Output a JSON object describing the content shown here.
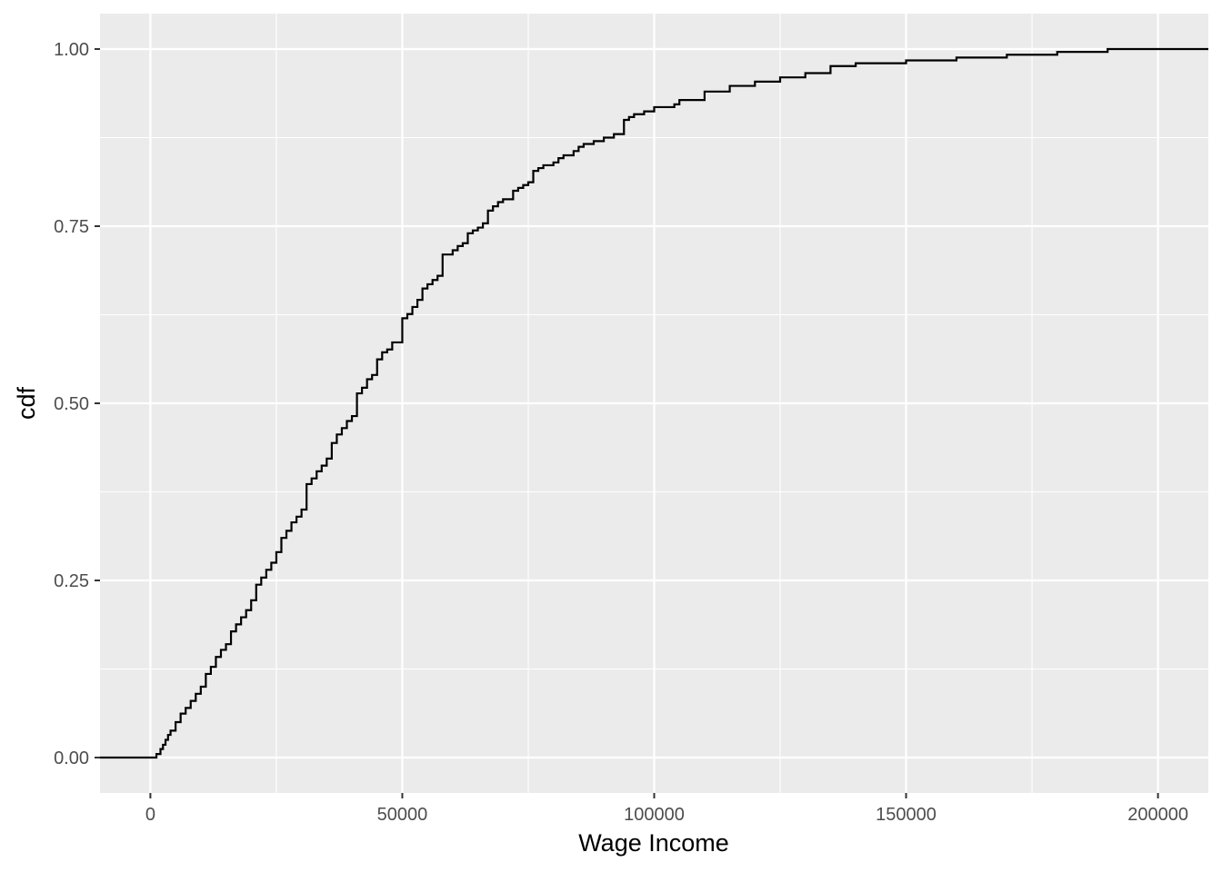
{
  "chart_data": {
    "type": "line",
    "xlabel": "Wage Income",
    "ylabel": "cdf",
    "xlim": [
      -10000,
      210000
    ],
    "ylim": [
      -0.05,
      1.05
    ],
    "x_ticks": [
      0,
      50000,
      100000,
      150000,
      200000
    ],
    "x_tick_labels": [
      "0",
      "50000",
      "100000",
      "150000",
      "200000"
    ],
    "y_ticks": [
      0,
      0.25,
      0.5,
      0.75,
      1
    ],
    "y_tick_labels": [
      "0.00",
      "0.25",
      "0.50",
      "0.75",
      "1.00"
    ],
    "x_minor_ticks": [
      25000,
      75000,
      125000,
      175000
    ],
    "y_minor_ticks": [
      0.125,
      0.375,
      0.625,
      0.875
    ],
    "grid": true,
    "panel_background": "#ebebeb",
    "grid_color": "#ffffff",
    "line_color": "#000000",
    "series": [
      {
        "step": true,
        "x": [
          -10000,
          1200,
          2000,
          2500,
          3000,
          3500,
          4000,
          5000,
          6000,
          7000,
          8000,
          9000,
          10000,
          11000,
          12000,
          13000,
          14000,
          15000,
          16000,
          17000,
          18000,
          19000,
          20000,
          21000,
          22000,
          23000,
          24000,
          25000,
          26000,
          27000,
          28000,
          29000,
          30000,
          31000,
          32000,
          33000,
          34000,
          35000,
          36000,
          37000,
          38000,
          39000,
          40000,
          41000,
          42000,
          43000,
          44000,
          45000,
          46000,
          47000,
          48000,
          50000,
          51000,
          52000,
          53000,
          54000,
          55000,
          56000,
          57000,
          58000,
          60000,
          61000,
          62000,
          63000,
          64000,
          65000,
          66000,
          67000,
          68000,
          69000,
          70000,
          72000,
          73000,
          74000,
          75000,
          76000,
          77000,
          78000,
          80000,
          81000,
          82000,
          84000,
          85000,
          86000,
          88000,
          90000,
          92000,
          94000,
          95000,
          96000,
          98000,
          100000,
          104000,
          105000,
          110000,
          115000,
          120000,
          125000,
          130000,
          135000,
          140000,
          150000,
          160000,
          170000,
          180000,
          190000,
          200000,
          210000
        ],
        "y": [
          0,
          0.005,
          0.012,
          0.018,
          0.025,
          0.032,
          0.038,
          0.05,
          0.062,
          0.07,
          0.08,
          0.09,
          0.1,
          0.118,
          0.128,
          0.142,
          0.152,
          0.16,
          0.178,
          0.188,
          0.198,
          0.208,
          0.222,
          0.244,
          0.254,
          0.265,
          0.275,
          0.29,
          0.31,
          0.32,
          0.332,
          0.34,
          0.35,
          0.386,
          0.394,
          0.404,
          0.412,
          0.422,
          0.444,
          0.456,
          0.465,
          0.475,
          0.482,
          0.514,
          0.522,
          0.534,
          0.54,
          0.562,
          0.572,
          0.576,
          0.586,
          0.62,
          0.626,
          0.636,
          0.646,
          0.662,
          0.668,
          0.674,
          0.68,
          0.71,
          0.716,
          0.722,
          0.726,
          0.74,
          0.744,
          0.748,
          0.754,
          0.772,
          0.778,
          0.784,
          0.788,
          0.8,
          0.804,
          0.808,
          0.812,
          0.828,
          0.832,
          0.836,
          0.84,
          0.846,
          0.85,
          0.856,
          0.862,
          0.866,
          0.87,
          0.875,
          0.88,
          0.9,
          0.904,
          0.908,
          0.912,
          0.918,
          0.922,
          0.928,
          0.94,
          0.948,
          0.954,
          0.96,
          0.966,
          0.976,
          0.98,
          0.984,
          0.988,
          0.992,
          0.996,
          1.0,
          1.0,
          1.0
        ]
      }
    ]
  }
}
